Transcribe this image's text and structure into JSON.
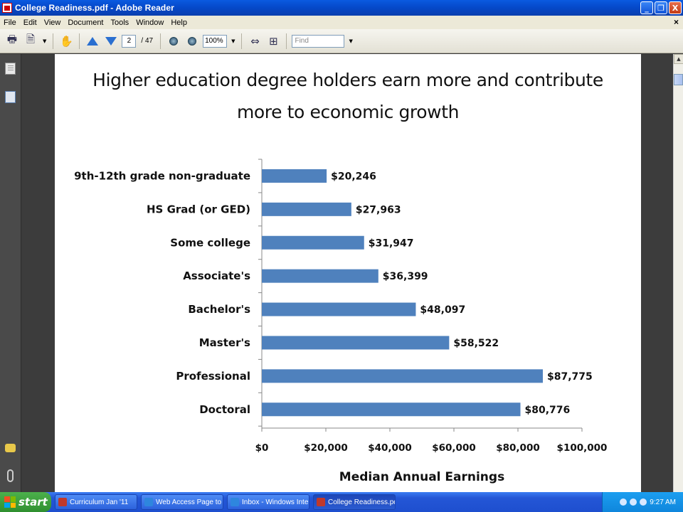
{
  "window": {
    "title": "College Readiness.pdf - Adobe Reader",
    "minimize": "_",
    "maximize": "❐",
    "close": "X"
  },
  "menu": {
    "items": [
      "File",
      "Edit",
      "View",
      "Document",
      "Tools",
      "Window",
      "Help"
    ],
    "doc_close": "×"
  },
  "toolbar": {
    "page_current": "2",
    "page_total": "/ 47",
    "zoom_value": "100%",
    "find_placeholder": "Find"
  },
  "document": {
    "title_line1": "Higher education degree holders earn more and contribute",
    "title_line2": "more to economic growth"
  },
  "chart_data": {
    "type": "bar",
    "orientation": "horizontal",
    "categories": [
      "9th-12th grade non-graduate",
      "HS Grad (or GED)",
      "Some college",
      "Associate's",
      "Bachelor's",
      "Master's",
      "Professional",
      "Doctoral"
    ],
    "values": [
      20246,
      27963,
      31947,
      36399,
      48097,
      58522,
      87775,
      80776
    ],
    "data_labels": [
      "$20,246",
      "$27,963",
      "$31,947",
      "$36,399",
      "$48,097",
      "$58,522",
      "$87,775",
      "$80,776"
    ],
    "xlabel": "Median Annual Earnings",
    "xlim": [
      0,
      100000
    ],
    "xticks": [
      0,
      20000,
      40000,
      60000,
      80000,
      100000
    ],
    "xtick_labels": [
      "$0",
      "$20,000",
      "$40,000",
      "$60,000",
      "$80,000",
      "$100,000"
    ],
    "bar_color": "#4f81bd",
    "grid": false,
    "legend": "none"
  },
  "taskbar": {
    "start_label": "start",
    "tasks": [
      {
        "label": "Curriculum Jan '11",
        "icon_color": "#c0392b"
      },
      {
        "label": "Web Access Page to ...",
        "icon_color": "#2e86de"
      },
      {
        "label": "Inbox - Windows Inte...",
        "icon_color": "#2e86de"
      },
      {
        "label": "College Readiness.pd...",
        "icon_color": "#c0392b"
      }
    ],
    "clock": "9:27 AM"
  }
}
